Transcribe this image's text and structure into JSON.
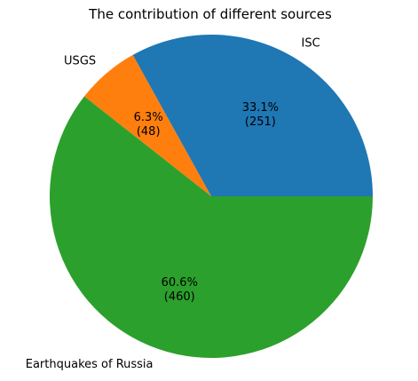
{
  "chart_data": {
    "type": "pie",
    "title": "The contribution of different sources",
    "categories": [
      "ISC",
      "USGS",
      "Earthquakes of Russia"
    ],
    "values": [
      251,
      48,
      460
    ],
    "percent_labels": [
      "33.1%",
      "6.3%",
      "60.6%"
    ],
    "count_labels": [
      "(251)",
      "(48)",
      "(460)"
    ],
    "colors": [
      "#1f77b4",
      "#ff7f0e",
      "#2ca02c"
    ],
    "start_angle_deg": 0,
    "direction": "counterclockwise"
  }
}
